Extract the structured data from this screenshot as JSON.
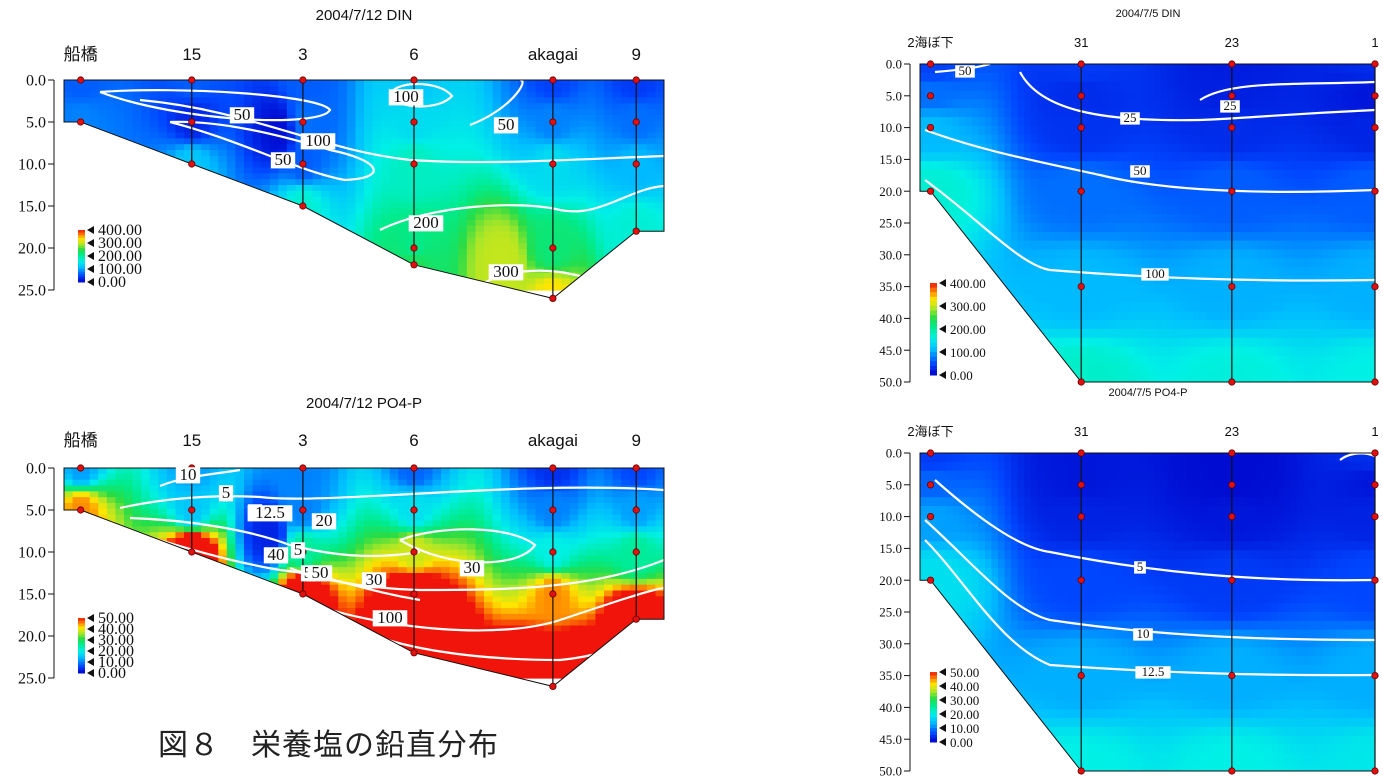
{
  "figure_caption": "図８　栄養塩の鉛直分布",
  "chart_data": [
    {
      "type": "heatmap",
      "title": "2004/7/12 DIN",
      "stations": [
        {
          "name": "船橋",
          "x": 0,
          "bottom": 5
        },
        {
          "name": "15",
          "x": 1,
          "bottom": 10
        },
        {
          "name": "3",
          "x": 2,
          "bottom": 15
        },
        {
          "name": "6",
          "x": 3,
          "bottom": 22
        },
        {
          "name": "akagai",
          "x": 4.25,
          "bottom": 26
        },
        {
          "name": "9",
          "x": 5,
          "bottom": 18
        }
      ],
      "xlim": [
        -0.15,
        5.25
      ],
      "ylim": [
        0,
        25
      ],
      "y_ticks": [
        "0.0",
        "5.0",
        "10.0",
        "15.0",
        "20.0",
        "25.0"
      ],
      "legend": [
        "400.00",
        "300.00",
        "200.00",
        "100.00",
        "0.00"
      ],
      "vmax": 400,
      "colorscale": "jet",
      "contour_labels": [
        "50",
        "100",
        "50",
        "100",
        "50",
        "200",
        "300"
      ],
      "samples": [
        {
          "x": 0,
          "d": 0,
          "v": 60
        },
        {
          "x": 0,
          "d": 5,
          "v": 80
        },
        {
          "x": 1,
          "d": 0,
          "v": 60
        },
        {
          "x": 1,
          "d": 5,
          "v": 25
        },
        {
          "x": 1,
          "d": 10,
          "v": 120
        },
        {
          "x": 1.8,
          "d": 6,
          "v": 10
        },
        {
          "x": 2,
          "d": 0,
          "v": 60
        },
        {
          "x": 2,
          "d": 5,
          "v": 70
        },
        {
          "x": 2,
          "d": 10,
          "v": 60
        },
        {
          "x": 2,
          "d": 15,
          "v": 170
        },
        {
          "x": 3,
          "d": 0,
          "v": 120
        },
        {
          "x": 3,
          "d": 5,
          "v": 140
        },
        {
          "x": 3,
          "d": 10,
          "v": 180
        },
        {
          "x": 3,
          "d": 20,
          "v": 210
        },
        {
          "x": 3,
          "d": 22,
          "v": 240
        },
        {
          "x": 3.8,
          "d": 22,
          "v": 300
        },
        {
          "x": 4.25,
          "d": 0,
          "v": 45
        },
        {
          "x": 4.25,
          "d": 5,
          "v": 80
        },
        {
          "x": 4.25,
          "d": 10,
          "v": 140
        },
        {
          "x": 4.25,
          "d": 20,
          "v": 220
        },
        {
          "x": 4.25,
          "d": 26,
          "v": 330
        },
        {
          "x": 5,
          "d": 0,
          "v": 40
        },
        {
          "x": 5,
          "d": 5,
          "v": 70
        },
        {
          "x": 5,
          "d": 10,
          "v": 110
        },
        {
          "x": 5,
          "d": 18,
          "v": 170
        }
      ]
    },
    {
      "type": "heatmap",
      "title": "2004/7/12 PO4-P",
      "stations": [
        {
          "name": "船橋",
          "x": 0,
          "bottom": 5
        },
        {
          "name": "15",
          "x": 1,
          "bottom": 10
        },
        {
          "name": "3",
          "x": 2,
          "bottom": 15
        },
        {
          "name": "6",
          "x": 3,
          "bottom": 22
        },
        {
          "name": "akagai",
          "x": 4.25,
          "bottom": 26
        },
        {
          "name": "9",
          "x": 5,
          "bottom": 18
        }
      ],
      "xlim": [
        -0.15,
        5.25
      ],
      "ylim": [
        0,
        25
      ],
      "y_ticks": [
        "0.0",
        "5.0",
        "10.0",
        "15.0",
        "20.0",
        "25.0"
      ],
      "legend": [
        "50.00",
        "40.00",
        "30.00",
        "20.00",
        "10.00",
        "0.00"
      ],
      "vmax": 50,
      "colorscale": "jet",
      "contour_labels": [
        "10",
        "5",
        "1",
        "12.5",
        "20",
        "5",
        "40",
        "5",
        "50",
        "30",
        "30",
        "100"
      ],
      "samples": [
        {
          "x": 0,
          "d": 0,
          "v": 12
        },
        {
          "x": 0,
          "d": 5,
          "v": 45
        },
        {
          "x": 1,
          "d": 0,
          "v": 12
        },
        {
          "x": 1,
          "d": 5,
          "v": 15
        },
        {
          "x": 1,
          "d": 10,
          "v": 60
        },
        {
          "x": 1.7,
          "d": 8,
          "v": 3
        },
        {
          "x": 2,
          "d": 0,
          "v": 10
        },
        {
          "x": 2,
          "d": 5,
          "v": 10
        },
        {
          "x": 2,
          "d": 10,
          "v": 25
        },
        {
          "x": 2,
          "d": 15,
          "v": 60
        },
        {
          "x": 3,
          "d": 0,
          "v": 8
        },
        {
          "x": 3,
          "d": 5,
          "v": 18
        },
        {
          "x": 3,
          "d": 10,
          "v": 38
        },
        {
          "x": 3,
          "d": 15,
          "v": 60
        },
        {
          "x": 3,
          "d": 22,
          "v": 80
        },
        {
          "x": 4.25,
          "d": 0,
          "v": 4
        },
        {
          "x": 4.25,
          "d": 5,
          "v": 10
        },
        {
          "x": 4.25,
          "d": 10,
          "v": 20
        },
        {
          "x": 4.25,
          "d": 15,
          "v": 45
        },
        {
          "x": 4.25,
          "d": 26,
          "v": 90
        },
        {
          "x": 5,
          "d": 0,
          "v": 6
        },
        {
          "x": 5,
          "d": 5,
          "v": 12
        },
        {
          "x": 5,
          "d": 10,
          "v": 25
        },
        {
          "x": 5,
          "d": 18,
          "v": 60
        }
      ]
    },
    {
      "type": "heatmap",
      "title": "2004/7/5 DIN",
      "stations": [
        {
          "name": "2海ぼ下",
          "x": 0,
          "bottom": 20
        },
        {
          "name": "31",
          "x": 1,
          "bottom": 50
        },
        {
          "name": "23",
          "x": 2,
          "bottom": 50
        },
        {
          "name": "1",
          "x": 2.95,
          "bottom": 50
        }
      ],
      "xlim": [
        -0.07,
        2.95
      ],
      "ylim": [
        0,
        50
      ],
      "y_ticks": [
        "0.0",
        "5.0",
        "10.0",
        "15.0",
        "20.0",
        "25.0",
        "30.0",
        "35.0",
        "40.0",
        "45.0",
        "50.0"
      ],
      "legend": [
        "400.00",
        "300.00",
        "200.00",
        "100.00",
        "0.00"
      ],
      "vmax": 400,
      "colorscale": "jet",
      "contour_labels": [
        "50",
        "25",
        "25",
        "50",
        "100"
      ],
      "samples": [
        {
          "x": 0,
          "d": 0,
          "v": 45
        },
        {
          "x": 0,
          "d": 5,
          "v": 70
        },
        {
          "x": 0,
          "d": 10,
          "v": 110
        },
        {
          "x": 0,
          "d": 20,
          "v": 170
        },
        {
          "x": 1,
          "d": 0,
          "v": 40
        },
        {
          "x": 1,
          "d": 5,
          "v": 30
        },
        {
          "x": 1,
          "d": 10,
          "v": 35
        },
        {
          "x": 1,
          "d": 20,
          "v": 70
        },
        {
          "x": 1,
          "d": 35,
          "v": 110
        },
        {
          "x": 1,
          "d": 50,
          "v": 175
        },
        {
          "x": 2,
          "d": 0,
          "v": 20
        },
        {
          "x": 2,
          "d": 5,
          "v": 22
        },
        {
          "x": 2,
          "d": 10,
          "v": 30
        },
        {
          "x": 2,
          "d": 20,
          "v": 60
        },
        {
          "x": 2,
          "d": 35,
          "v": 105
        },
        {
          "x": 2,
          "d": 50,
          "v": 165
        },
        {
          "x": 2.95,
          "d": 0,
          "v": 30
        },
        {
          "x": 2.95,
          "d": 5,
          "v": 15
        },
        {
          "x": 2.95,
          "d": 10,
          "v": 25
        },
        {
          "x": 2.95,
          "d": 20,
          "v": 60
        },
        {
          "x": 2.95,
          "d": 35,
          "v": 105
        },
        {
          "x": 2.95,
          "d": 50,
          "v": 160
        }
      ]
    },
    {
      "type": "heatmap",
      "title": "2004/7/5 PO4-P",
      "stations": [
        {
          "name": "2海ぼ下",
          "x": 0,
          "bottom": 20
        },
        {
          "name": "31",
          "x": 1,
          "bottom": 50
        },
        {
          "name": "23",
          "x": 2,
          "bottom": 50
        },
        {
          "name": "1",
          "x": 2.95,
          "bottom": 50
        }
      ],
      "xlim": [
        -0.07,
        2.95
      ],
      "ylim": [
        0,
        50
      ],
      "y_ticks": [
        "0.0",
        "5.0",
        "10.0",
        "15.0",
        "20.0",
        "25.0",
        "30.0",
        "35.0",
        "40.0",
        "45.0",
        "50.0"
      ],
      "legend": [
        "50.00",
        "40.00",
        "30.00",
        "20.00",
        "10.00",
        "0.00"
      ],
      "vmax": 50,
      "colorscale": "jet",
      "contour_labels": [
        "5",
        "10",
        "12.5"
      ],
      "samples": [
        {
          "x": 0,
          "d": 0,
          "v": 5
        },
        {
          "x": 0,
          "d": 5,
          "v": 8
        },
        {
          "x": 0,
          "d": 10,
          "v": 12
        },
        {
          "x": 0,
          "d": 20,
          "v": 18
        },
        {
          "x": 1,
          "d": 0,
          "v": 2
        },
        {
          "x": 1,
          "d": 5,
          "v": 2
        },
        {
          "x": 1,
          "d": 10,
          "v": 3
        },
        {
          "x": 1,
          "d": 20,
          "v": 6
        },
        {
          "x": 1,
          "d": 35,
          "v": 13
        },
        {
          "x": 1,
          "d": 50,
          "v": 20
        },
        {
          "x": 2,
          "d": 0,
          "v": 1
        },
        {
          "x": 2,
          "d": 5,
          "v": 1
        },
        {
          "x": 2,
          "d": 10,
          "v": 2
        },
        {
          "x": 2,
          "d": 20,
          "v": 5
        },
        {
          "x": 2,
          "d": 35,
          "v": 13
        },
        {
          "x": 2,
          "d": 50,
          "v": 20
        },
        {
          "x": 2.95,
          "d": 0,
          "v": 4
        },
        {
          "x": 2.95,
          "d": 5,
          "v": 2
        },
        {
          "x": 2.95,
          "d": 10,
          "v": 3
        },
        {
          "x": 2.95,
          "d": 20,
          "v": 6
        },
        {
          "x": 2.95,
          "d": 35,
          "v": 13
        },
        {
          "x": 2.95,
          "d": 50,
          "v": 19
        }
      ]
    }
  ]
}
